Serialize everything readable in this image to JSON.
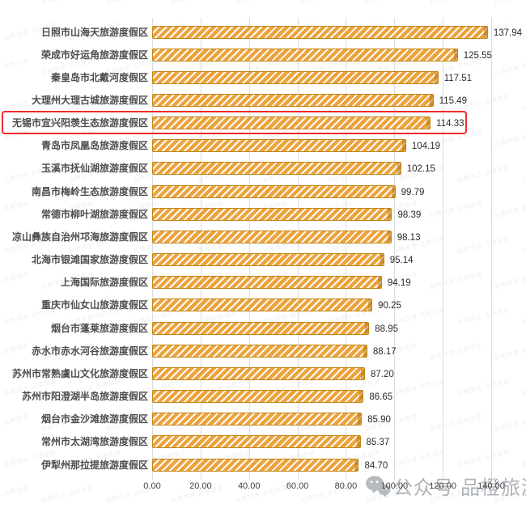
{
  "chart_data": {
    "type": "bar",
    "orientation": "horizontal",
    "title": "",
    "xlabel": "",
    "ylabel": "",
    "categories": [
      "日照市山海天旅游度假区",
      "荣成市好运角旅游度假区",
      "秦皇岛市北戴河度假区",
      "大理州大理古城旅游度假区",
      "无锡市宜兴阳羡生态旅游度假区",
      "青岛市凤凰岛旅游度假区",
      "玉溪市抚仙湖旅游度假区",
      "南昌市梅岭生态旅游度假区",
      "常德市柳叶湖旅游度假区",
      "凉山彝族自治州邛海旅游度假区",
      "北海市银滩国家旅游度假区",
      "上海国际旅游度假区",
      "重庆市仙女山旅游度假区",
      "烟台市蓬莱旅游度假区",
      "赤水市赤水河谷旅游度假区",
      "苏州市常熟虞山文化旅游度假区",
      "苏州市阳澄湖半岛旅游度假区",
      "烟台市金沙滩旅游度假区",
      "常州市太湖湾旅游度假区",
      "伊犁州那拉提旅游度假区"
    ],
    "values": [
      137.94,
      125.55,
      117.51,
      115.49,
      114.33,
      104.19,
      102.15,
      99.79,
      98.39,
      98.13,
      95.14,
      94.19,
      90.25,
      88.95,
      88.17,
      87.2,
      86.65,
      85.9,
      85.37,
      84.7
    ],
    "x_ticks": [
      "0.00",
      "20.00",
      "40.00",
      "60.00",
      "80.00",
      "100.00",
      "120.00",
      "140.00"
    ],
    "xlim": [
      0,
      140
    ],
    "grid": true,
    "legend": false,
    "bar_color": "#EDA33B",
    "bar_border_color": "#C08514",
    "highlight_index": 4,
    "highlight_color": "#F02B2B"
  },
  "watermark": {
    "brand_text_1": "公众号",
    "brand_text_2": "品橙旅游",
    "tile_text": "品橙旅游"
  }
}
